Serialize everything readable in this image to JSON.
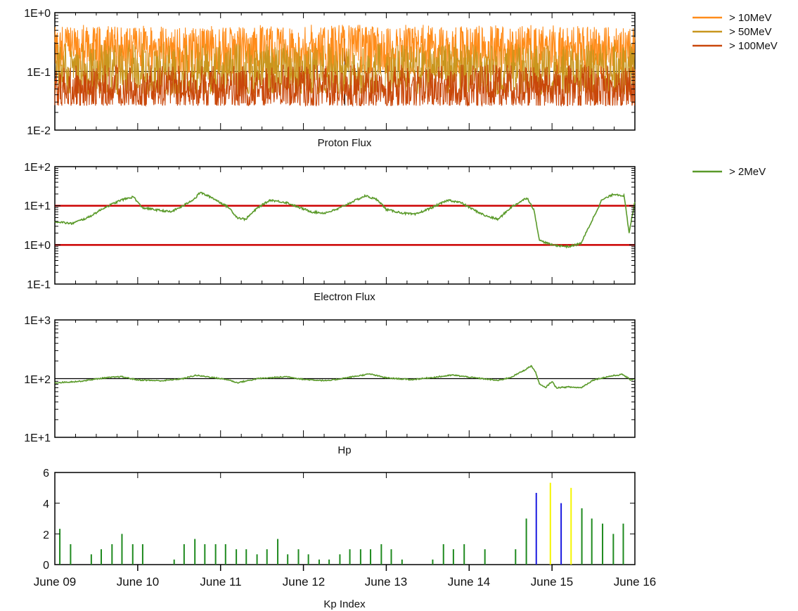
{
  "chart_data": [
    {
      "type": "line",
      "panel": "proton",
      "xlabel": "Proton Flux",
      "yscale": "log",
      "ylim": [
        0.01,
        1
      ],
      "yticks": [
        "1E+0",
        "1E-1",
        "1E-2"
      ],
      "threshold_lines": [
        0.1
      ],
      "x_range_days": [
        0,
        7
      ],
      "legend_position": "right",
      "series": [
        {
          "name": "> 10MeV",
          "color": "#FF8C1A",
          "typical": 0.24,
          "band": [
            0.09,
            0.62
          ]
        },
        {
          "name": "> 50MeV",
          "color": "#C8961E",
          "typical": 0.1,
          "band": [
            0.04,
            0.3
          ]
        },
        {
          "name": "> 100MeV",
          "color": "#C9470A",
          "typical": 0.05,
          "band": [
            0.026,
            0.13
          ]
        }
      ]
    },
    {
      "type": "line",
      "panel": "electron",
      "xlabel": "Electron Flux",
      "yscale": "log",
      "ylim": [
        0.1,
        100
      ],
      "yticks": [
        "1E+2",
        "1E+1",
        "1E+0",
        "1E-1"
      ],
      "threshold_lines": [
        10,
        1
      ],
      "threshold_color": "#CC0000",
      "legend_position": "right",
      "series": [
        {
          "name": "> 2MeV",
          "color": "#5A9A2A",
          "points": [
            [
              0,
              4
            ],
            [
              0.2,
              3.5
            ],
            [
              0.4,
              5
            ],
            [
              0.6,
              9
            ],
            [
              0.8,
              14
            ],
            [
              0.95,
              17
            ],
            [
              1.05,
              9
            ],
            [
              1.2,
              8
            ],
            [
              1.4,
              7
            ],
            [
              1.55,
              10
            ],
            [
              1.7,
              16
            ],
            [
              1.75,
              22
            ],
            [
              1.9,
              16
            ],
            [
              2.0,
              12
            ],
            [
              2.1,
              9
            ],
            [
              2.2,
              5
            ],
            [
              2.3,
              4.5
            ],
            [
              2.45,
              9
            ],
            [
              2.6,
              14
            ],
            [
              2.8,
              12
            ],
            [
              2.95,
              9
            ],
            [
              3.1,
              7
            ],
            [
              3.25,
              6.5
            ],
            [
              3.4,
              8
            ],
            [
              3.6,
              13
            ],
            [
              3.75,
              18
            ],
            [
              3.9,
              14
            ],
            [
              4.0,
              8
            ],
            [
              4.2,
              6.5
            ],
            [
              4.35,
              6
            ],
            [
              4.55,
              9
            ],
            [
              4.75,
              14
            ],
            [
              4.9,
              12
            ],
            [
              5.05,
              8
            ],
            [
              5.2,
              5.5
            ],
            [
              5.35,
              4.5
            ],
            [
              5.5,
              9
            ],
            [
              5.65,
              14
            ],
            [
              5.7,
              16
            ],
            [
              5.78,
              8
            ],
            [
              5.85,
              1.3
            ],
            [
              6.0,
              1.0
            ],
            [
              6.2,
              0.9
            ],
            [
              6.35,
              1.1
            ],
            [
              6.5,
              5
            ],
            [
              6.6,
              14
            ],
            [
              6.75,
              20
            ],
            [
              6.87,
              18
            ],
            [
              6.93,
              2
            ],
            [
              7.0,
              13
            ]
          ]
        }
      ]
    },
    {
      "type": "line",
      "panel": "hp",
      "xlabel": "Hp",
      "yscale": "log",
      "ylim": [
        10,
        1000
      ],
      "yticks": [
        "1E+3",
        "1E+2",
        "1E+1"
      ],
      "threshold_lines": [
        100
      ],
      "legend_position": "none",
      "series": [
        {
          "color": "#5A9A2A",
          "points": [
            [
              0,
              85
            ],
            [
              0.3,
              90
            ],
            [
              0.6,
              103
            ],
            [
              0.8,
              108
            ],
            [
              1.0,
              95
            ],
            [
              1.3,
              92
            ],
            [
              1.55,
              100
            ],
            [
              1.7,
              114
            ],
            [
              1.9,
              105
            ],
            [
              2.1,
              95
            ],
            [
              2.2,
              85
            ],
            [
              2.45,
              100
            ],
            [
              2.8,
              108
            ],
            [
              3.0,
              97
            ],
            [
              3.3,
              92
            ],
            [
              3.6,
              108
            ],
            [
              3.8,
              120
            ],
            [
              4.0,
              103
            ],
            [
              4.3,
              96
            ],
            [
              4.6,
              106
            ],
            [
              4.8,
              115
            ],
            [
              5.05,
              104
            ],
            [
              5.35,
              93
            ],
            [
              5.5,
              105
            ],
            [
              5.65,
              135
            ],
            [
              5.75,
              165
            ],
            [
              5.8,
              130
            ],
            [
              5.85,
              80
            ],
            [
              5.92,
              70
            ],
            [
              6.0,
              90
            ],
            [
              6.05,
              70
            ],
            [
              6.2,
              72
            ],
            [
              6.35,
              70
            ],
            [
              6.5,
              95
            ],
            [
              6.7,
              110
            ],
            [
              6.85,
              118
            ],
            [
              6.95,
              95
            ],
            [
              7.0,
              100
            ]
          ]
        }
      ]
    },
    {
      "type": "bar",
      "panel": "kp",
      "xlabel": "Kp Index",
      "ylim": [
        0,
        6
      ],
      "yticks": [
        6,
        4,
        2,
        0
      ],
      "x_tick_labels": [
        "June 09",
        "June 10",
        "June 11",
        "June 12",
        "June 13",
        "June 14",
        "June 15",
        "June 16"
      ],
      "bar_colors": {
        "green": "#1F8A1F",
        "blue": "#1A1AE0",
        "yellow": "#F5F500"
      },
      "bars": [
        {
          "x": 0.06,
          "v": 2.33,
          "c": "green"
        },
        {
          "x": 0.19,
          "v": 1.33,
          "c": "green"
        },
        {
          "x": 0.44,
          "v": 0.67,
          "c": "green"
        },
        {
          "x": 0.56,
          "v": 1,
          "c": "green"
        },
        {
          "x": 0.69,
          "v": 1.33,
          "c": "green"
        },
        {
          "x": 0.81,
          "v": 2,
          "c": "green"
        },
        {
          "x": 0.94,
          "v": 1.33,
          "c": "green"
        },
        {
          "x": 1.06,
          "v": 1.33,
          "c": "green"
        },
        {
          "x": 1.44,
          "v": 0.33,
          "c": "green"
        },
        {
          "x": 1.56,
          "v": 1.33,
          "c": "green"
        },
        {
          "x": 1.69,
          "v": 1.67,
          "c": "green"
        },
        {
          "x": 1.81,
          "v": 1.33,
          "c": "green"
        },
        {
          "x": 1.94,
          "v": 1.33,
          "c": "green"
        },
        {
          "x": 2.06,
          "v": 1.33,
          "c": "green"
        },
        {
          "x": 2.19,
          "v": 1,
          "c": "green"
        },
        {
          "x": 2.31,
          "v": 1,
          "c": "green"
        },
        {
          "x": 2.44,
          "v": 0.67,
          "c": "green"
        },
        {
          "x": 2.56,
          "v": 1,
          "c": "green"
        },
        {
          "x": 2.69,
          "v": 1.67,
          "c": "green"
        },
        {
          "x": 2.81,
          "v": 0.67,
          "c": "green"
        },
        {
          "x": 2.94,
          "v": 1,
          "c": "green"
        },
        {
          "x": 3.06,
          "v": 0.67,
          "c": "green"
        },
        {
          "x": 3.19,
          "v": 0.33,
          "c": "green"
        },
        {
          "x": 3.31,
          "v": 0.33,
          "c": "green"
        },
        {
          "x": 3.44,
          "v": 0.67,
          "c": "green"
        },
        {
          "x": 3.56,
          "v": 1,
          "c": "green"
        },
        {
          "x": 3.69,
          "v": 1,
          "c": "green"
        },
        {
          "x": 3.81,
          "v": 1,
          "c": "green"
        },
        {
          "x": 3.94,
          "v": 1.33,
          "c": "green"
        },
        {
          "x": 4.06,
          "v": 1,
          "c": "green"
        },
        {
          "x": 4.19,
          "v": 0.33,
          "c": "green"
        },
        {
          "x": 4.56,
          "v": 0.33,
          "c": "green"
        },
        {
          "x": 4.69,
          "v": 1.33,
          "c": "green"
        },
        {
          "x": 4.81,
          "v": 1,
          "c": "green"
        },
        {
          "x": 4.94,
          "v": 1.33,
          "c": "green"
        },
        {
          "x": 5.19,
          "v": 1,
          "c": "green"
        },
        {
          "x": 5.56,
          "v": 1,
          "c": "green"
        },
        {
          "x": 5.69,
          "v": 3,
          "c": "green"
        },
        {
          "x": 5.81,
          "v": 4.67,
          "c": "blue"
        },
        {
          "x": 5.98,
          "v": 5.33,
          "c": "yellow"
        },
        {
          "x": 6.11,
          "v": 4,
          "c": "blue"
        },
        {
          "x": 6.23,
          "v": 5,
          "c": "yellow"
        },
        {
          "x": 6.36,
          "v": 3.67,
          "c": "green"
        },
        {
          "x": 6.48,
          "v": 3,
          "c": "green"
        },
        {
          "x": 6.61,
          "v": 2.67,
          "c": "green"
        },
        {
          "x": 6.74,
          "v": 2,
          "c": "green"
        },
        {
          "x": 6.86,
          "v": 2.67,
          "c": "green"
        }
      ]
    }
  ]
}
